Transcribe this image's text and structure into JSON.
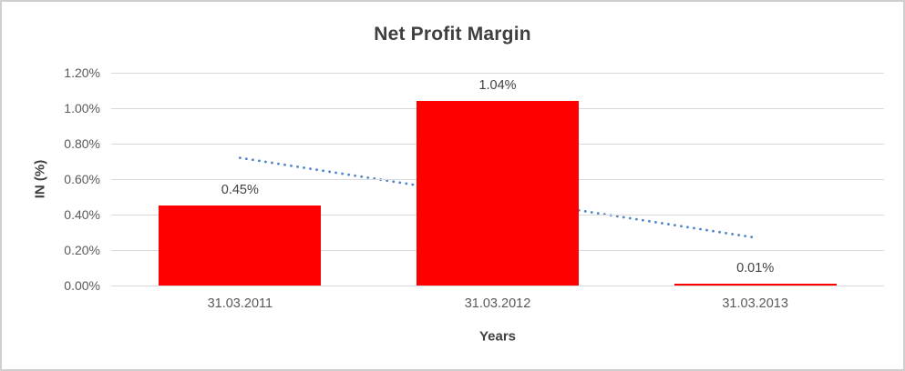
{
  "chart_data": {
    "type": "bar",
    "title": "Net Profit Margin",
    "xlabel": "Years",
    "ylabel": "IN (%)",
    "categories": [
      "31.03.2011",
      "31.03.2012",
      "31.03.2013"
    ],
    "values": [
      0.45,
      1.04,
      0.01
    ],
    "value_labels": [
      "0.45%",
      "1.04%",
      "0.01%"
    ],
    "ylim": [
      0,
      1.2
    ],
    "yticks": {
      "values": [
        0.0,
        0.2,
        0.4,
        0.6,
        0.8,
        1.0,
        1.2
      ],
      "labels": [
        "0.00%",
        "0.20%",
        "0.40%",
        "0.60%",
        "0.80%",
        "1.00%",
        "1.20%"
      ]
    },
    "grid": true,
    "legend": false,
    "bar_color": "#ff0000",
    "trendline": {
      "style": "dotted",
      "color": "#4e87c9",
      "start_value": 0.72,
      "end_value": 0.27
    },
    "colors": {
      "gridline": "#d9d9d9",
      "tick_text": "#595959",
      "label_text": "#404040",
      "title_text": "#3f3f3f",
      "frame_border": "#cfcfcf"
    }
  }
}
